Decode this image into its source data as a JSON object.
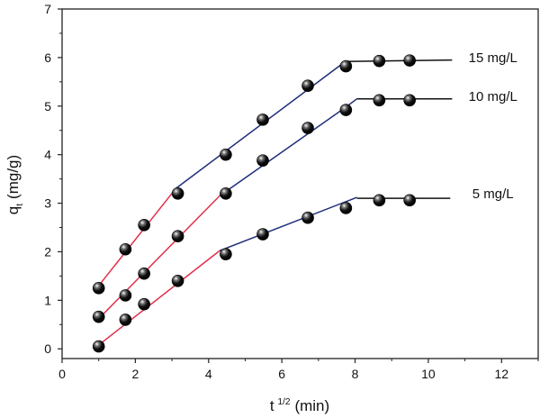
{
  "chart_data": {
    "type": "scatter",
    "title": "",
    "xlabel": "t",
    "xlabel_superscript": "1/2",
    "xlabel_unit": "(min)",
    "ylabel": "q",
    "ylabel_subscript": "t",
    "ylabel_unit": "(mg/g)",
    "xlim": [
      0,
      13
    ],
    "ylim": [
      -0.2,
      7
    ],
    "xticks": [
      "0",
      "2",
      "4",
      "6",
      "8",
      "10",
      "12"
    ],
    "yticks": [
      "0",
      "1",
      "2",
      "3",
      "4",
      "5",
      "6",
      "7"
    ],
    "grid": false,
    "x": [
      1,
      1.73,
      2.24,
      3.16,
      4.47,
      5.48,
      6.71,
      7.75,
      8.66,
      9.49
    ],
    "series": [
      {
        "name": "15 mg/L",
        "values": [
          1.25,
          2.05,
          2.55,
          3.2,
          4.0,
          4.72,
          5.42,
          5.82,
          5.93,
          5.94
        ],
        "fits": [
          {
            "color": "#e0304a",
            "points": [
              [
                1,
                1.3
              ],
              [
                3.05,
                3.25
              ]
            ]
          },
          {
            "color": "#1f2f7a",
            "points": [
              [
                3.1,
                3.3
              ],
              [
                7.7,
                5.9
              ]
            ]
          },
          {
            "color": "#111111",
            "points": [
              [
                7.75,
                5.92
              ],
              [
                10.65,
                5.95
              ]
            ]
          }
        ]
      },
      {
        "name": "10 mg/L",
        "values": [
          0.66,
          1.1,
          1.55,
          2.32,
          3.2,
          3.88,
          4.55,
          4.92,
          5.12,
          5.12
        ],
        "fits": [
          {
            "color": "#e0304a",
            "points": [
              [
                1,
                0.62
              ],
              [
                4.3,
                3.15
              ]
            ]
          },
          {
            "color": "#1f2f7a",
            "points": [
              [
                4.3,
                3.15
              ],
              [
                7.75,
                4.98
              ],
              [
                8.05,
                5.15
              ]
            ]
          },
          {
            "color": "#111111",
            "points": [
              [
                8.05,
                5.15
              ],
              [
                10.65,
                5.15
              ]
            ]
          }
        ]
      },
      {
        "name": "5 mg/L",
        "values": [
          0.05,
          0.6,
          0.92,
          1.4,
          1.95,
          2.36,
          2.7,
          2.9,
          3.06,
          3.06
        ],
        "fits": [
          {
            "color": "#e0304a",
            "points": [
              [
                1,
                0.08
              ],
              [
                4.3,
                2.02
              ]
            ]
          },
          {
            "color": "#1f2f7a",
            "points": [
              [
                4.3,
                2.02
              ],
              [
                8.05,
                3.12
              ]
            ]
          },
          {
            "color": "#111111",
            "points": [
              [
                8.05,
                3.1
              ],
              [
                10.6,
                3.1
              ]
            ]
          }
        ]
      }
    ],
    "annotations": [
      {
        "text": "15 mg/L",
        "x": 11.1,
        "y": 6.0
      },
      {
        "text": "10 mg/L",
        "x": 11.1,
        "y": 5.2
      },
      {
        "text": "5 mg/L",
        "x": 11.2,
        "y": 3.2
      }
    ]
  }
}
